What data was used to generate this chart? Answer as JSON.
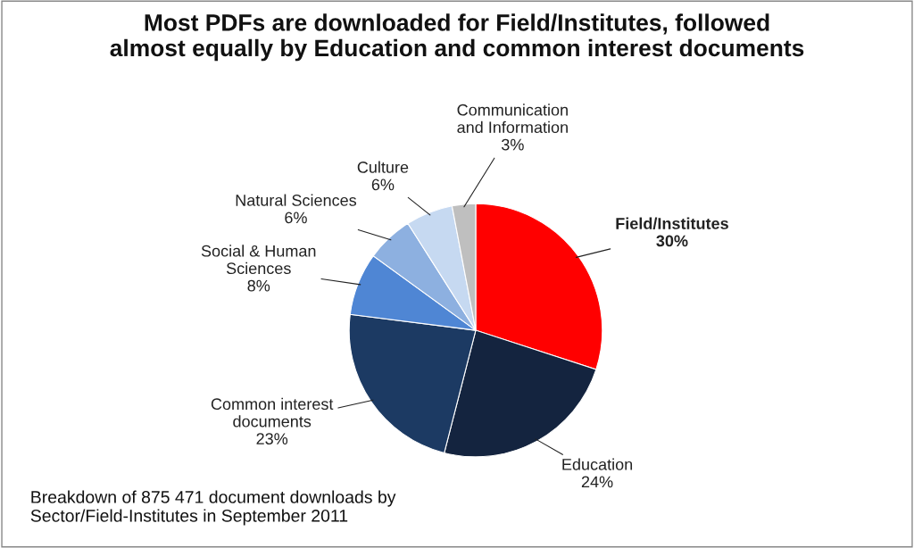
{
  "chart_data": {
    "type": "pie",
    "title": "Most PDFs are downloaded for Field/Institutes, followed\nalmost equally by Education and common interest documents",
    "categories": [
      "Field/Institutes",
      "Education",
      "Common interest\ndocuments",
      "Social & Human\nSciences",
      "Natural Sciences",
      "Culture",
      "Communication\nand Information"
    ],
    "values": [
      30,
      24,
      23,
      8,
      6,
      6,
      3
    ],
    "colors": [
      "#ff0000",
      "#14243f",
      "#1c3a63",
      "#4f86d4",
      "#8db0e0",
      "#c6d9f1",
      "#bfbfbf"
    ],
    "value_labels": [
      "30%",
      "24%",
      "23%",
      "8%",
      "6%",
      "6%",
      "3%"
    ],
    "annotations": [
      "Breakdown of 875 471 document downloads by\nSector/Field-Institutes in September 2011"
    ]
  }
}
